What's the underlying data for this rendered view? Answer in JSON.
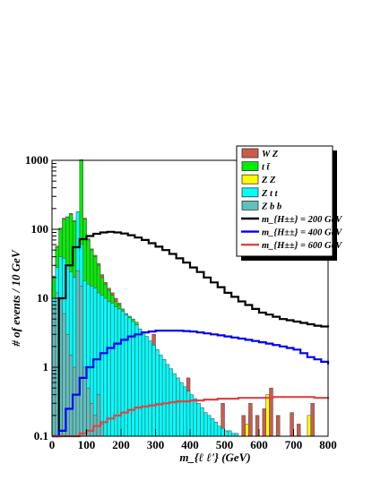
{
  "chart_data": {
    "type": "histogram",
    "xlabel": "m_{ℓ ℓ'} (GeV)",
    "ylabel": "# of events / 10 GeV",
    "xlim": [
      0,
      800
    ],
    "ylim": [
      0.1,
      1000
    ],
    "yscale": "log",
    "x_ticks": [
      "0",
      "100",
      "200",
      "300",
      "400",
      "500",
      "600",
      "700",
      "800"
    ],
    "y_ticks": [
      "0.1",
      "1",
      "10",
      "100",
      "1000"
    ],
    "bin_width": 10,
    "legend_position": "top-right",
    "legend": [
      {
        "label": "W Z",
        "kind": "fill",
        "color": "#cd5b4c"
      },
      {
        "label": "t t̄",
        "kind": "fill",
        "color": "#00ee00"
      },
      {
        "label": "Z Z",
        "kind": "fill",
        "color": "#ffff00"
      },
      {
        "label": "Z t t",
        "kind": "fill",
        "color": "#00ffff"
      },
      {
        "label": "Z b b",
        "kind": "fill",
        "color": "#5fbfbf"
      },
      {
        "label": "m_{H±±} = 200 GeV",
        "kind": "line",
        "color": "#000000"
      },
      {
        "label": "m_{H±±} = 400 GeV",
        "kind": "line",
        "color": "#0000ee"
      },
      {
        "label": "m_{H±±} = 600 GeV",
        "kind": "line",
        "color": "#dd4444"
      }
    ],
    "stack": [
      {
        "name": "Z b b",
        "color": "#5fbfbf",
        "x": [
          10,
          20,
          30,
          40,
          50,
          60,
          70,
          80,
          90,
          100,
          110,
          120,
          130,
          140,
          150
        ],
        "y": [
          8,
          12,
          10,
          6,
          3,
          1.5,
          1,
          25,
          15,
          1,
          0.5,
          0.3,
          0.2,
          0.4,
          0.15
        ]
      },
      {
        "name": "Z t t",
        "color": "#00ffff",
        "x": [
          10,
          20,
          30,
          40,
          50,
          60,
          70,
          80,
          90,
          100,
          110,
          120,
          130,
          140,
          150,
          160,
          170,
          180,
          190,
          200,
          210,
          220,
          230,
          240,
          250,
          260,
          270,
          280,
          290,
          300,
          310,
          320,
          330,
          340,
          350,
          360,
          370,
          380,
          390,
          400,
          410,
          420,
          430,
          440,
          450,
          460,
          470,
          480,
          490,
          500,
          510,
          520,
          530,
          540,
          550
        ],
        "y": [
          10,
          28,
          40,
          38,
          30,
          24,
          20,
          180,
          60,
          18,
          16,
          15,
          14,
          12,
          11,
          10,
          9,
          8.5,
          7.5,
          7,
          6.5,
          5.8,
          5.2,
          4.6,
          4.1,
          3.6,
          3.2,
          2.8,
          2.4,
          2.1,
          1.8,
          1.5,
          1.3,
          1.1,
          0.95,
          0.8,
          0.7,
          0.6,
          0.52,
          0.45,
          0.4,
          0.35,
          0.3,
          0.26,
          0.22,
          0.2,
          0.18,
          0.16,
          0.14,
          0.13,
          0.12,
          0.12,
          0.11,
          0.11,
          0.1
        ]
      },
      {
        "name": "t t̄",
        "color": "#00ee00",
        "x": [
          10,
          20,
          30,
          40,
          50,
          60,
          70,
          80,
          90,
          100,
          110,
          120,
          130,
          140,
          150,
          160,
          170,
          180,
          190,
          200,
          210,
          220,
          230,
          240,
          250
        ],
        "y": [
          20,
          55,
          100,
          140,
          150,
          165,
          130,
          120,
          1000,
          140,
          70,
          50,
          40,
          30,
          20,
          16,
          13,
          11,
          9,
          8,
          7,
          6,
          5.5,
          5,
          4.5
        ]
      },
      {
        "name": "W Z",
        "color": "#cd5b4c",
        "x": [
          10,
          20,
          30,
          40,
          50,
          60,
          70,
          80,
          90,
          100,
          110,
          120,
          130,
          140,
          150,
          160,
          170,
          180,
          190,
          200,
          300,
          400,
          500,
          560,
          580,
          600,
          620,
          640,
          660,
          700,
          720,
          760
        ],
        "y": [
          21,
          57,
          104,
          145,
          152,
          170,
          134,
          124,
          1020,
          145,
          73,
          52,
          42,
          32,
          22,
          17,
          14,
          12,
          10,
          8.5,
          3,
          0.7,
          0.3,
          0.2,
          0.3,
          0.2,
          0.25,
          0.5,
          0.2,
          0.22,
          0.15,
          0.3
        ]
      },
      {
        "name": "Z Z",
        "color": "#ffff00",
        "x": [
          570,
          580,
          630,
          660,
          750
        ],
        "y": [
          0.15,
          0.2,
          0.4,
          0.2,
          0.2
        ]
      }
    ],
    "series": [
      {
        "name": "m_{H±±} = 200 GeV",
        "color": "#000000",
        "x": [
          0,
          20,
          40,
          60,
          80,
          100,
          120,
          140,
          160,
          180,
          200,
          220,
          240,
          260,
          280,
          300,
          320,
          340,
          360,
          380,
          400,
          420,
          440,
          460,
          480,
          500,
          520,
          540,
          560,
          580,
          600,
          620,
          640,
          660,
          680,
          700,
          720,
          740,
          760,
          780,
          800
        ],
        "y": [
          0.1,
          10,
          30,
          55,
          72,
          80,
          86,
          90,
          92,
          90,
          87,
          82,
          76,
          70,
          63,
          56,
          50,
          44,
          38,
          33,
          28,
          24,
          20,
          17,
          14.5,
          12,
          10.5,
          9,
          8,
          7,
          6.2,
          5.8,
          5.4,
          5,
          4.8,
          4.6,
          4.4,
          4.2,
          4,
          3.9,
          3.8
        ]
      },
      {
        "name": "m_{H±±} = 400 GeV",
        "color": "#0000ee",
        "x": [
          0,
          20,
          40,
          60,
          80,
          100,
          120,
          140,
          160,
          180,
          200,
          220,
          240,
          260,
          280,
          300,
          320,
          340,
          360,
          380,
          400,
          420,
          440,
          460,
          480,
          500,
          520,
          540,
          560,
          580,
          600,
          620,
          640,
          660,
          680,
          700,
          720,
          740,
          760,
          780,
          800
        ],
        "y": [
          0.1,
          0.12,
          0.25,
          0.4,
          0.7,
          1,
          1.3,
          1.6,
          1.9,
          2.2,
          2.5,
          2.8,
          3,
          3.2,
          3.3,
          3.4,
          3.4,
          3.4,
          3.4,
          3.35,
          3.3,
          3.2,
          3.1,
          3,
          2.9,
          2.8,
          2.7,
          2.6,
          2.5,
          2.4,
          2.3,
          2.2,
          2.1,
          2,
          1.9,
          1.8,
          1.6,
          1.4,
          1.3,
          1.2,
          1.1
        ]
      },
      {
        "name": "m_{H±±} = 600 GeV",
        "color": "#dd4444",
        "x": [
          0,
          20,
          40,
          60,
          80,
          100,
          120,
          140,
          160,
          180,
          200,
          220,
          240,
          260,
          280,
          300,
          320,
          340,
          360,
          380,
          400,
          420,
          440,
          460,
          480,
          500,
          520,
          540,
          560,
          580,
          600,
          620,
          640,
          660,
          680,
          700,
          720,
          740,
          760,
          780,
          800
        ],
        "y": [
          0.1,
          0.1,
          0.1,
          0.1,
          0.11,
          0.12,
          0.14,
          0.16,
          0.18,
          0.2,
          0.22,
          0.24,
          0.26,
          0.27,
          0.28,
          0.29,
          0.3,
          0.31,
          0.32,
          0.32,
          0.33,
          0.33,
          0.34,
          0.34,
          0.35,
          0.35,
          0.35,
          0.36,
          0.36,
          0.36,
          0.36,
          0.36,
          0.37,
          0.37,
          0.37,
          0.37,
          0.37,
          0.37,
          0.36,
          0.36,
          0.35
        ]
      }
    ]
  }
}
